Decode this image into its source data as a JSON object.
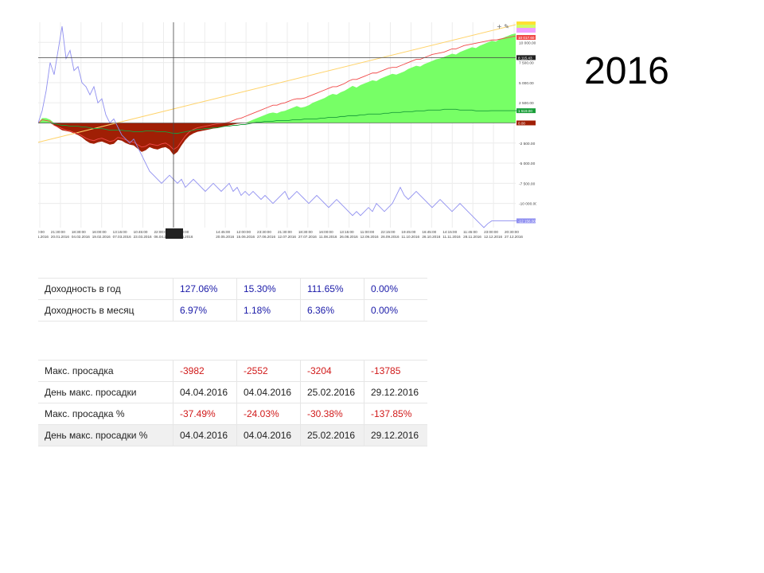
{
  "year_title": "2016",
  "chart_data": {
    "type": "area",
    "y_ticks": [
      "10 000.00",
      "7 500.00",
      "5 000.00",
      "2 500.00",
      "-2 500.00",
      "-5 000.00",
      "-7 500.00",
      "-10 000.00"
    ],
    "ylim": [
      -13000,
      12500
    ],
    "x_ticks": [
      [
        "00:00:00",
        "04.01.2016"
      ],
      [
        "21:30:00",
        "20.01.2016"
      ],
      [
        "18:30:00",
        "04.02.2016"
      ],
      [
        "16:00:00",
        "19.02.2016"
      ],
      [
        "13:15:00",
        "07.03.2016"
      ],
      [
        "10:45:00",
        "23.03.2016"
      ],
      [
        "22:00:00",
        "06.04.2016"
      ],
      [
        "19:30:00",
        "21.04.2016"
      ],
      [
        "",
        ""
      ],
      [
        "14:45:00",
        "20.05.2016"
      ],
      [
        "12:00:00",
        "15.06.2016"
      ],
      [
        "23:30:00",
        "27.06.2016"
      ],
      [
        "21:30:00",
        "12.07.2016"
      ],
      [
        "18:30:00",
        "27.07.2016"
      ],
      [
        "16:00:00",
        "11.08.2016"
      ],
      [
        "13:15:00",
        "26.08.2016"
      ],
      [
        "11:00:00",
        "12.09.2016"
      ],
      [
        "22:15:00",
        "26.09.2016"
      ],
      [
        "19:45:00",
        "11.10.2016"
      ],
      [
        "16:45:00",
        "26.10.2016"
      ],
      [
        "14:15:00",
        "11.11.2016"
      ],
      [
        "11:45:00",
        "28.11.2016"
      ],
      [
        "23:00:00",
        "12.12.2016"
      ],
      [
        "20:30:00",
        "27.12.2016"
      ]
    ],
    "crosshair_y_label": "8 115.43",
    "crosshair_x_label": "",
    "right_labels": [
      "",
      "",
      "",
      "10 017.60",
      "1 519.00",
      "0.00",
      "-12 156.00"
    ],
    "series_colors": {
      "equity_gain": "#77ff66",
      "equity_loss": "#a01f05",
      "balance_red": "#f04848",
      "green_line": "#1a9e3a",
      "blue_line": "#8f8ff0",
      "trend": "#ffd36a"
    },
    "equity": [
      0,
      600,
      600,
      400,
      -300,
      -600,
      -900,
      -1000,
      -1100,
      -1300,
      -1500,
      -1800,
      -2200,
      -2500,
      -2600,
      -2400,
      -2300,
      -2500,
      -2700,
      -2600,
      -2100,
      -2200,
      -2500,
      -2700,
      -2800,
      -3200,
      -3600,
      -3400,
      -3000,
      -3200,
      -3300,
      -3100,
      -3000,
      -3300,
      -3982,
      -3600,
      -2800,
      -2100,
      -1600,
      -1300,
      -1100,
      -1000,
      -900,
      -800,
      -700,
      -650,
      -500,
      -400,
      -300,
      -200,
      -100,
      -50,
      0,
      200,
      400,
      600,
      800,
      1000,
      1200,
      1300,
      1200,
      1400,
      1500,
      1700,
      1900,
      2100,
      1900,
      2000,
      2200,
      2500,
      2700,
      2900,
      3100,
      3400,
      3600,
      3500,
      3800,
      4000,
      4300,
      4600,
      4400,
      4700,
      4900,
      5100,
      5300,
      5200,
      5500,
      5700,
      5900,
      6100,
      6000,
      6200,
      6400,
      6700,
      6900,
      7100,
      7000,
      7300,
      7500,
      7700,
      7900,
      8000,
      8200,
      8400,
      8600,
      8500,
      8800,
      9000,
      9200,
      9400,
      9300,
      9600,
      9800,
      10000,
      10200,
      10100,
      10400,
      10600,
      10800,
      11000,
      11100
    ],
    "red_line": [
      0,
      400,
      300,
      200,
      -300,
      -500,
      -700,
      -900,
      -1000,
      -1200,
      -1300,
      -1600,
      -1900,
      -2100,
      -2200,
      -2000,
      -1900,
      -2100,
      -2300,
      -2200,
      -1800,
      -1900,
      -2100,
      -2300,
      -2400,
      -2700,
      -3000,
      -2900,
      -2600,
      -2700,
      -2800,
      -2600,
      -2500,
      -2800,
      -3300,
      -3000,
      -2300,
      -1600,
      -1100,
      -800,
      -600,
      -500,
      -400,
      -300,
      -200,
      -100,
      -50,
      0,
      100,
      300,
      500,
      600,
      800,
      1000,
      1200,
      1400,
      1600,
      1800,
      2000,
      2200,
      2200,
      2400,
      2500,
      2700,
      2900,
      3000,
      3000,
      3100,
      3300,
      3500,
      3700,
      3900,
      4100,
      4300,
      4500,
      4500,
      4700,
      4900,
      5200,
      5400,
      5400,
      5600,
      5800,
      6000,
      6200,
      6200,
      6400,
      6600,
      6800,
      6900,
      6900,
      7100,
      7300,
      7500,
      7700,
      7900,
      7900,
      8100,
      8300,
      8500,
      8600,
      8700,
      8800,
      9000,
      9200,
      9200,
      9400,
      9600,
      9700,
      9800,
      9900,
      10000,
      10100,
      10200,
      10300,
      10300,
      10400,
      10500,
      10600,
      10700,
      10800
    ],
    "green_line": [
      0,
      0,
      0,
      0,
      -100,
      -200,
      -300,
      -300,
      -400,
      -400,
      -400,
      -500,
      -500,
      -600,
      -700,
      -700,
      -700,
      -800,
      -900,
      -900,
      -900,
      -900,
      -1000,
      -1000,
      -1100,
      -1100,
      -1100,
      -1000,
      -1000,
      -1000,
      -1100,
      -1100,
      -1100,
      -1200,
      -1300,
      -1300,
      -1200,
      -1100,
      -1000,
      -900,
      -800,
      -800,
      -700,
      -700,
      -600,
      -600,
      -500,
      -400,
      -400,
      -300,
      -300,
      -200,
      -200,
      -100,
      0,
      100,
      100,
      200,
      200,
      200,
      300,
      300,
      300,
      300,
      400,
      400,
      400,
      500,
      500,
      500,
      500,
      600,
      600,
      700,
      700,
      700,
      800,
      800,
      900,
      900,
      900,
      1000,
      1000,
      1100,
      1100,
      1100,
      1100,
      1200,
      1200,
      1300,
      1300,
      1300,
      1400,
      1400,
      1400,
      1500,
      1500,
      1500,
      1600,
      1600,
      1600,
      1600,
      1700,
      1700,
      1700,
      1700,
      1600,
      1600,
      1600,
      1600,
      1500,
      1500,
      1500,
      1500,
      1519,
      1519,
      1519,
      1519,
      1519,
      1519,
      1519,
      1519
    ],
    "blue_line": [
      0,
      1500,
      4000,
      7500,
      6000,
      9000,
      12000,
      8000,
      9000,
      6500,
      7000,
      5000,
      4500,
      3500,
      4500,
      2500,
      3000,
      1000,
      0,
      500,
      -500,
      -1500,
      -2000,
      -2500,
      -2000,
      -3000,
      -4000,
      -5000,
      -6000,
      -6500,
      -7000,
      -7500,
      -7000,
      -6500,
      -7000,
      -7500,
      -7000,
      -8000,
      -7500,
      -7000,
      -7500,
      -8000,
      -8500,
      -8000,
      -7500,
      -8000,
      -8500,
      -8000,
      -7500,
      -8500,
      -8000,
      -9000,
      -8500,
      -9000,
      -8500,
      -9000,
      -9500,
      -9000,
      -9500,
      -10000,
      -9500,
      -9000,
      -8500,
      -9500,
      -9000,
      -8500,
      -9000,
      -9500,
      -10000,
      -9500,
      -9000,
      -9500,
      -10000,
      -10500,
      -10000,
      -9500,
      -10000,
      -10500,
      -11000,
      -11500,
      -11000,
      -11500,
      -11000,
      -10500,
      -11000,
      -10000,
      -10500,
      -11000,
      -10500,
      -10000,
      -9000,
      -8000,
      -9000,
      -9500,
      -9000,
      -8500,
      -9000,
      -9500,
      -10000,
      -10500,
      -10000,
      -9500,
      -10000,
      -10500,
      -11000,
      -10500,
      -10000,
      -10500,
      -11000,
      -11500,
      -12000,
      -12500,
      -13000,
      -12500,
      -12156,
      -12156,
      -12156,
      -12156,
      -12156,
      -12156,
      -12156,
      -12156
    ]
  },
  "table_yield": {
    "rows": [
      {
        "label": "Доходность в год",
        "values": [
          "127.06%",
          "15.30%",
          "111.65%",
          "0.00%"
        ]
      },
      {
        "label": "Доходность в месяц",
        "values": [
          "6.97%",
          "1.18%",
          "6.36%",
          "0.00%"
        ]
      }
    ]
  },
  "table_drawdown": {
    "rows": [
      {
        "label": "Макс. просадка",
        "values": [
          "-3982",
          "-2552",
          "-3204",
          "-13785"
        ]
      },
      {
        "label": "День макс. просадки",
        "values": [
          "04.04.2016",
          "04.04.2016",
          "25.02.2016",
          "29.12.2016"
        ]
      },
      {
        "label": "Макс. просадка %",
        "values": [
          "-37.49%",
          "-24.03%",
          "-30.38%",
          "-137.85%"
        ]
      },
      {
        "label": "День макс. просадки %",
        "values": [
          "04.04.2016",
          "04.04.2016",
          "25.02.2016",
          "29.12.2016"
        ]
      }
    ]
  }
}
